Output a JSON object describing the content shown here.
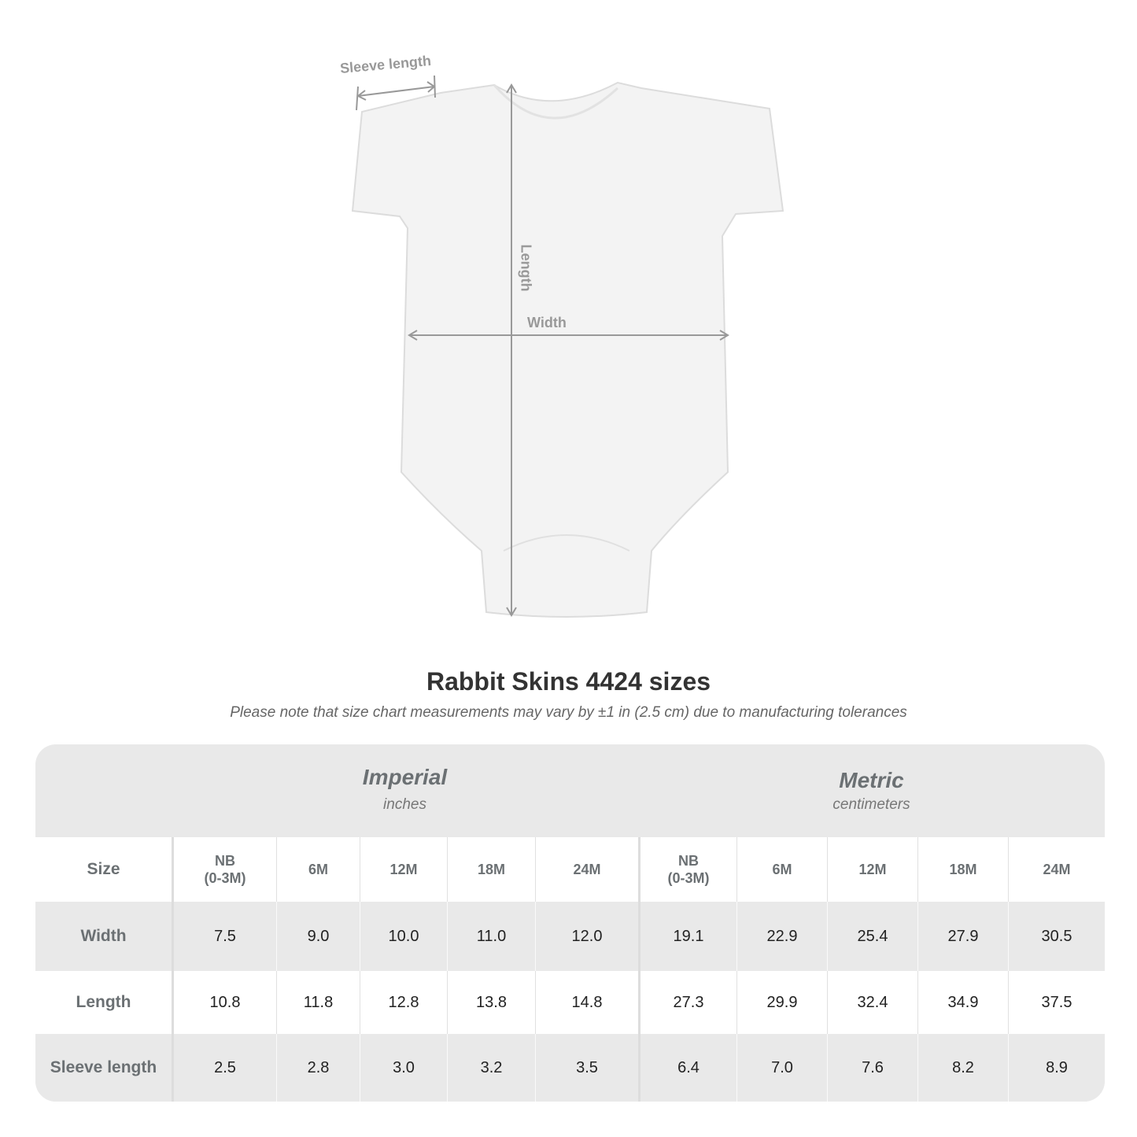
{
  "diagram": {
    "labels": {
      "sleeve_length": "Sleeve length",
      "length": "Length",
      "width": "Width"
    }
  },
  "title": "Rabbit Skins 4424 sizes",
  "subtitle": "Please note that size chart measurements may vary by ±1 in (2.5 cm) due to manufacturing tolerances",
  "table": {
    "imperial": {
      "label": "Imperial",
      "unit": "inches"
    },
    "metric": {
      "label": "Metric",
      "unit": "centimeters"
    },
    "size_label": "Size",
    "sizes": [
      "NB\n(0-3M)",
      "6M",
      "12M",
      "18M",
      "24M"
    ],
    "rows": [
      {
        "label": "Width",
        "imperial": [
          "7.5",
          "9.0",
          "10.0",
          "11.0",
          "12.0"
        ],
        "metric": [
          "19.1",
          "22.9",
          "25.4",
          "27.9",
          "30.5"
        ]
      },
      {
        "label": "Length",
        "imperial": [
          "10.8",
          "11.8",
          "12.8",
          "13.8",
          "14.8"
        ],
        "metric": [
          "27.3",
          "29.9",
          "32.4",
          "34.9",
          "37.5"
        ]
      },
      {
        "label": "Sleeve length",
        "imperial": [
          "2.5",
          "2.8",
          "3.0",
          "3.2",
          "3.5"
        ],
        "metric": [
          "6.4",
          "7.0",
          "7.6",
          "8.2",
          "8.9"
        ]
      }
    ]
  }
}
